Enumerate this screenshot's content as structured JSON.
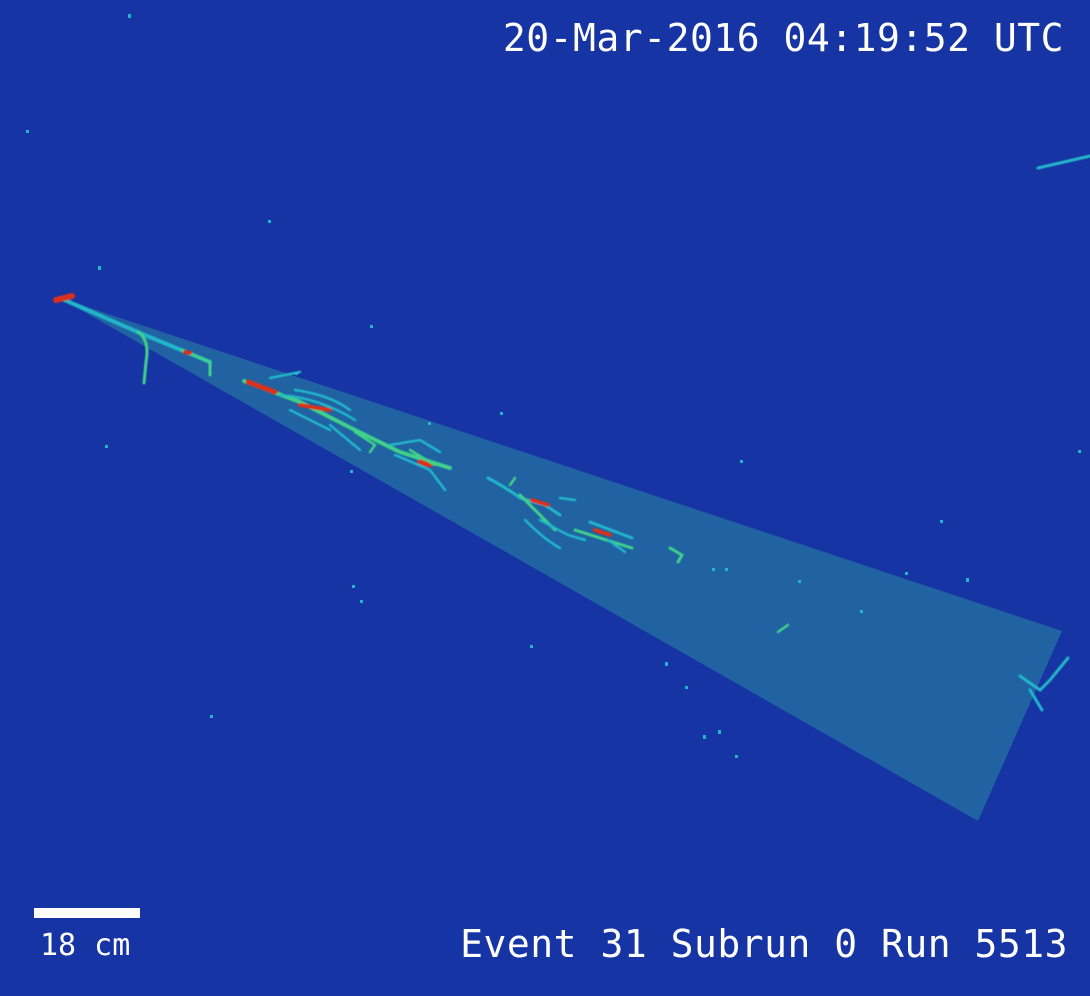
{
  "overlay": {
    "timestamp": "20-Mar-2016 04:19:52 UTC",
    "event_info": "Event 31 Subrun 0 Run 5513",
    "scale_label": "18 cm"
  },
  "colors": {
    "background": "#1634a3",
    "cone_fill": "#1f6d8c",
    "track_low": "#22b6c9",
    "track_mid": "#3fd18a",
    "track_high": "#d9301e",
    "text": "#ffffff"
  }
}
